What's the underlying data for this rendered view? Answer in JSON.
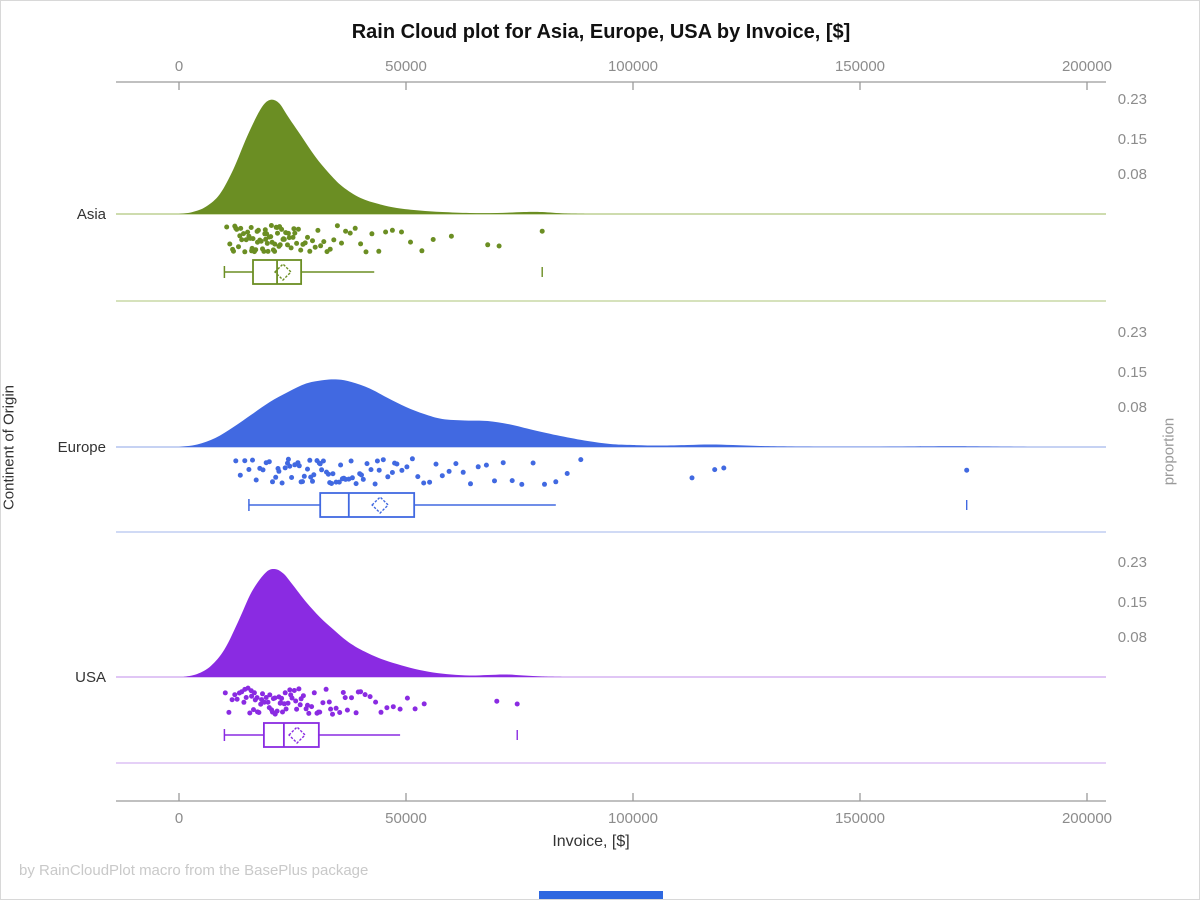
{
  "page": {
    "background": "#ffffff",
    "border_color": "#d8d8d8"
  },
  "footer": {
    "text": "by RainCloudPlot macro from the BasePlus package"
  },
  "scrollbar": {
    "color": "#2f68e0"
  },
  "chart_data": {
    "type": "raincloud",
    "title": "Rain Cloud plot for Asia, Europe, USA by Invoice, [$]",
    "xlabel": "Invoice, [$]",
    "ylabel_left": "Continent of Origin",
    "ylabel_right": "proportion",
    "x_ticks": [
      0,
      50000,
      100000,
      150000,
      200000
    ],
    "xlim": [
      -14000,
      204000
    ],
    "proportion_ticks": [
      0.08,
      0.15,
      0.23
    ],
    "axis_color": "#9a9a9a",
    "tick_label_color": "#8c8c8c",
    "category_label_color": "#333333",
    "proportion_label_color": "#8c8c8c",
    "legend": "none",
    "grid": "off",
    "series": [
      {
        "name": "Asia",
        "color": "#6B8E23",
        "light_color": "#bdd093",
        "density": {
          "x": [
            0,
            3000,
            6000,
            9000,
            12000,
            15000,
            18000,
            20000,
            22000,
            24000,
            27000,
            30000,
            33000,
            36000,
            40000,
            44000,
            48000,
            53000,
            58000,
            64000,
            70000,
            76000,
            80000,
            85000,
            90000
          ],
          "p": [
            0,
            0.004,
            0.015,
            0.04,
            0.09,
            0.155,
            0.21,
            0.228,
            0.222,
            0.195,
            0.155,
            0.115,
            0.082,
            0.055,
            0.032,
            0.02,
            0.012,
            0.007,
            0.004,
            0.002,
            0.002,
            0.004,
            0.004,
            0.001,
            0
          ]
        },
        "box": {
          "whisker_low": 10000,
          "q1": 16300,
          "median": 21600,
          "q3": 26900,
          "whisker_high": 43000,
          "mean": 22900,
          "outliers": [
            80000
          ]
        },
        "rain": [
          10500,
          11200,
          11800,
          12000,
          12300,
          12500,
          12700,
          13100,
          13400,
          13600,
          13800,
          14200,
          14500,
          14800,
          15100,
          15400,
          15700,
          15900,
          16000,
          16100,
          16300,
          16600,
          16900,
          17200,
          17300,
          17500,
          17800,
          18100,
          18400,
          18700,
          18900,
          19000,
          19100,
          19300,
          19450,
          19600,
          19900,
          20200,
          20350,
          20500,
          20800,
          21050,
          21100,
          21400,
          21600,
          21700,
          22000,
          22150,
          22300,
          22600,
          22900,
          23050,
          23200,
          23500,
          23900,
          24100,
          24300,
          24700,
          25100,
          25300,
          25500,
          25900,
          26300,
          26800,
          27300,
          27800,
          28300,
          28800,
          29400,
          30000,
          30600,
          31200,
          31900,
          32600,
          33300,
          34100,
          34900,
          35800,
          36700,
          37700,
          38800,
          40000,
          41200,
          42500,
          44000,
          45500,
          47000,
          49000,
          51000,
          53500,
          56000,
          60000,
          68000,
          70500,
          80000
        ]
      },
      {
        "name": "Europe",
        "color": "#4169E1",
        "light_color": "#b3c3ef",
        "density": {
          "x": [
            0,
            4000,
            8000,
            12000,
            16000,
            20000,
            24000,
            28000,
            32000,
            35000,
            38000,
            42000,
            46000,
            50000,
            54000,
            58000,
            63000,
            68000,
            73000,
            78000,
            84000,
            90000,
            95000,
            100000,
            106000,
            112000,
            117000,
            122000,
            128000,
            134000,
            142000,
            152000,
            162000,
            170000,
            175000,
            182000,
            190000
          ],
          "p": [
            0,
            0.005,
            0.018,
            0.04,
            0.065,
            0.09,
            0.11,
            0.127,
            0.134,
            0.135,
            0.13,
            0.117,
            0.098,
            0.08,
            0.066,
            0.056,
            0.053,
            0.052,
            0.045,
            0.034,
            0.022,
            0.012,
            0.006,
            0.004,
            0.003,
            0.004,
            0.005,
            0.004,
            0.002,
            0.001,
            0.0005,
            0.0005,
            0.001,
            0.0015,
            0.0012,
            0.0005,
            0
          ]
        },
        "box": {
          "whisker_low": 15400,
          "q1": 31100,
          "median": 37400,
          "q3": 51800,
          "whisker_high": 83000,
          "mean": 44300,
          "outliers": [
            173500
          ]
        },
        "rain": [
          12500,
          13500,
          14500,
          15400,
          16200,
          17000,
          17800,
          18500,
          19200,
          19900,
          20600,
          21300,
          21800,
          22000,
          22700,
          23400,
          23900,
          24100,
          24400,
          24800,
          25500,
          26200,
          26500,
          26900,
          27200,
          27600,
          28300,
          28800,
          29000,
          29400,
          29700,
          30400,
          30900,
          31100,
          31400,
          31800,
          32500,
          32900,
          33200,
          33600,
          33900,
          34600,
          35300,
          35600,
          36000,
          36300,
          36700,
          37400,
          37900,
          38200,
          39000,
          39800,
          40200,
          40600,
          41400,
          42300,
          43200,
          43700,
          44100,
          45000,
          46000,
          47000,
          47500,
          48000,
          49100,
          50200,
          51400,
          52600,
          53900,
          55200,
          56600,
          58000,
          59500,
          61000,
          62600,
          64200,
          65900,
          67700,
          69500,
          71400,
          73400,
          75500,
          78000,
          80500,
          83000,
          85500,
          88500,
          113000,
          118000,
          120000,
          173500
        ]
      },
      {
        "name": "USA",
        "color": "#8A2BE2",
        "light_color": "#d5b3f2",
        "density": {
          "x": [
            1000,
            4000,
            7000,
            10000,
            13000,
            16000,
            19000,
            21000,
            23000,
            25000,
            28000,
            31000,
            34000,
            37000,
            40000,
            44000,
            48000,
            52000,
            56000,
            60000,
            64000,
            68000,
            72000,
            76000,
            80000,
            85000
          ],
          "p": [
            0,
            0.006,
            0.022,
            0.055,
            0.11,
            0.17,
            0.208,
            0.216,
            0.207,
            0.185,
            0.15,
            0.12,
            0.095,
            0.072,
            0.055,
            0.038,
            0.026,
            0.016,
            0.009,
            0.005,
            0.003,
            0.004,
            0.005,
            0.003,
            0.001,
            0
          ]
        },
        "box": {
          "whisker_low": 10000,
          "q1": 18700,
          "median": 23100,
          "q3": 30800,
          "whisker_high": 48700,
          "mean": 26000,
          "outliers": [
            74500
          ]
        },
        "rain": [
          10200,
          11000,
          11700,
          12300,
          12800,
          13300,
          13800,
          14300,
          14500,
          14800,
          15200,
          15600,
          15900,
          16000,
          16400,
          16600,
          16800,
          17200,
          17300,
          17600,
          18000,
          18200,
          18400,
          18800,
          19200,
          19600,
          19900,
          20000,
          20400,
          20600,
          20800,
          21100,
          21200,
          21600,
          22000,
          22300,
          22400,
          22600,
          22800,
          23200,
          23400,
          23600,
          24000,
          24400,
          24600,
          24900,
          25400,
          25700,
          25900,
          26400,
          26700,
          26900,
          27400,
          28000,
          28300,
          28600,
          29200,
          29800,
          30400,
          30700,
          31000,
          31700,
          32400,
          33100,
          33400,
          33800,
          34600,
          35400,
          36200,
          36600,
          37100,
          38000,
          39000,
          39500,
          40000,
          41000,
          42100,
          43300,
          44500,
          45800,
          47200,
          48700,
          50300,
          52000,
          54000,
          70000,
          74500
        ]
      }
    ]
  }
}
